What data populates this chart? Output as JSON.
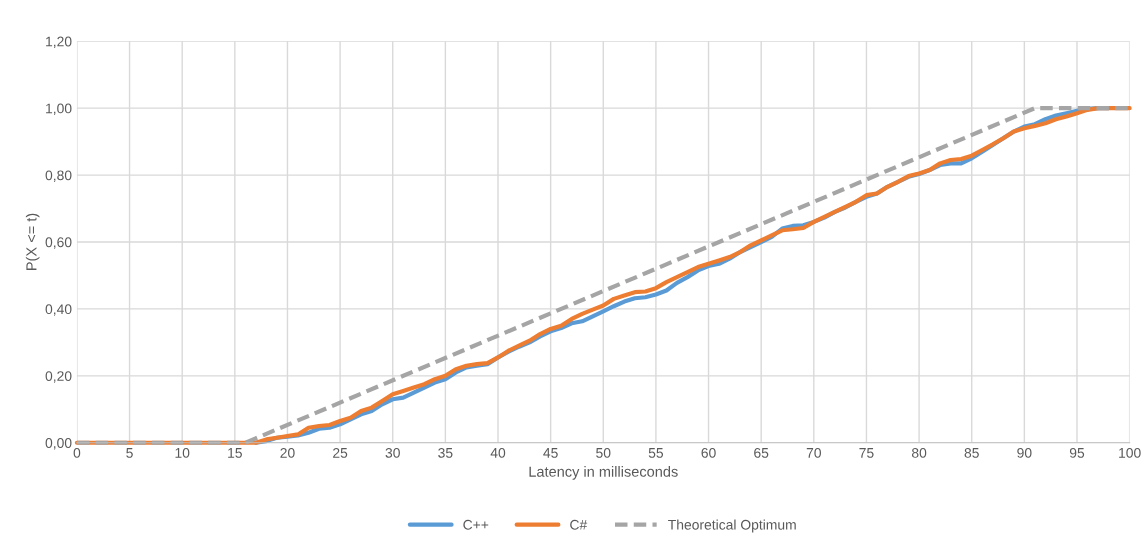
{
  "chart_data": {
    "type": "line",
    "xlabel": "Latency in milliseconds",
    "ylabel": "P(X <= t)",
    "xlim": [
      0,
      100
    ],
    "xticks": [
      0,
      5,
      10,
      15,
      20,
      25,
      30,
      35,
      40,
      45,
      50,
      55,
      60,
      65,
      70,
      75,
      80,
      85,
      90,
      95,
      100
    ],
    "ylim": [
      0,
      1.2
    ],
    "yticks": [
      {
        "value": 0,
        "label": "0,00"
      },
      {
        "value": 0.2,
        "label": "0,20"
      },
      {
        "value": 0.4,
        "label": "0,40"
      },
      {
        "value": 0.6,
        "label": "0,60"
      },
      {
        "value": 0.8,
        "label": "0,80"
      },
      {
        "value": 1.0,
        "label": "1,00"
      },
      {
        "value": 1.2,
        "label": "1,20"
      }
    ],
    "grid": true,
    "legend": "bottom",
    "x": [
      0,
      16,
      17,
      18,
      19,
      20,
      21,
      22,
      23,
      24,
      25,
      26,
      27,
      28,
      29,
      30,
      31,
      32,
      33,
      34,
      35,
      36,
      37,
      38,
      39,
      40,
      41,
      42,
      43,
      44,
      45,
      46,
      47,
      48,
      49,
      50,
      51,
      52,
      53,
      54,
      55,
      56,
      57,
      58,
      59,
      60,
      61,
      62,
      63,
      64,
      65,
      66,
      67,
      68,
      69,
      70,
      71,
      72,
      73,
      74,
      75,
      76,
      77,
      78,
      79,
      80,
      81,
      82,
      83,
      84,
      85,
      86,
      87,
      88,
      89,
      90,
      91,
      92,
      93,
      94,
      95,
      96,
      97,
      98,
      99,
      100
    ],
    "series": [
      {
        "name": "C++",
        "color": "#5b9bd5",
        "values": [
          null,
          null,
          0,
          0.005,
          0.015,
          0.018,
          0.022,
          0.03,
          0.042,
          0.045,
          0.055,
          0.07,
          0.085,
          0.095,
          0.115,
          0.13,
          0.135,
          0.15,
          0.165,
          0.18,
          0.19,
          0.21,
          0.225,
          0.23,
          0.235,
          0.255,
          0.272,
          0.287,
          0.3,
          0.318,
          0.333,
          0.343,
          0.357,
          0.363,
          0.378,
          0.393,
          0.408,
          0.422,
          0.432,
          0.435,
          0.443,
          0.455,
          0.478,
          0.495,
          0.515,
          0.528,
          0.535,
          0.55,
          0.57,
          0.585,
          0.6,
          0.615,
          0.64,
          0.648,
          0.65,
          0.66,
          0.673,
          0.69,
          0.703,
          0.72,
          0.735,
          0.745,
          0.765,
          0.78,
          0.795,
          0.803,
          0.815,
          0.83,
          0.835,
          0.835,
          0.85,
          0.87,
          0.89,
          0.91,
          0.93,
          0.945,
          0.952,
          0.967,
          0.978,
          0.985,
          0.992,
          0.998,
          1.0,
          1.0,
          null,
          null
        ]
      },
      {
        "name": "C#",
        "color": "#ed7d31",
        "values": [
          0,
          0,
          0,
          0.01,
          0.015,
          0.02,
          0.025,
          0.045,
          0.05,
          0.053,
          0.065,
          0.075,
          0.095,
          0.105,
          0.125,
          0.145,
          0.155,
          0.165,
          0.175,
          0.19,
          0.2,
          0.22,
          0.23,
          0.235,
          0.238,
          0.255,
          0.275,
          0.29,
          0.305,
          0.325,
          0.34,
          0.35,
          0.37,
          0.385,
          0.398,
          0.41,
          0.43,
          0.44,
          0.45,
          0.452,
          0.462,
          0.48,
          0.495,
          0.51,
          0.525,
          0.535,
          0.545,
          0.555,
          0.57,
          0.59,
          0.605,
          0.62,
          0.635,
          0.638,
          0.642,
          0.66,
          0.675,
          0.69,
          0.705,
          0.72,
          0.74,
          0.745,
          0.765,
          0.78,
          0.797,
          0.805,
          0.815,
          0.835,
          0.845,
          0.848,
          0.858,
          0.875,
          0.892,
          0.91,
          0.93,
          0.94,
          0.947,
          0.955,
          0.967,
          0.975,
          0.985,
          0.995,
          1.0,
          1.0,
          1.0,
          1.0
        ]
      },
      {
        "name": "Theoretical Optimum",
        "color": "#a5a5a5",
        "line_style": "dashed",
        "x": [
          0,
          16,
          91,
          100
        ],
        "values": [
          0,
          0,
          1.0,
          1.0
        ]
      }
    ]
  }
}
